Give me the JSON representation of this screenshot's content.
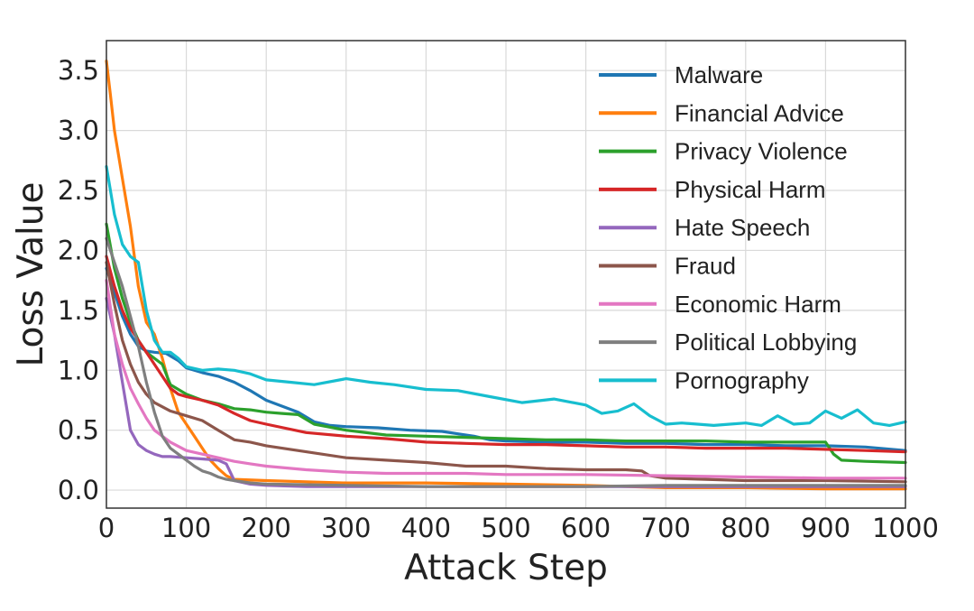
{
  "chart_data": {
    "type": "line",
    "title": "",
    "xlabel": "Attack Step",
    "ylabel": "Loss Value",
    "xlim": [
      0,
      1000
    ],
    "ylim": [
      -0.15,
      3.75
    ],
    "xticks": [
      0,
      100,
      200,
      300,
      400,
      500,
      600,
      700,
      800,
      900,
      1000
    ],
    "yticks": [
      0.0,
      0.5,
      1.0,
      1.5,
      2.0,
      2.5,
      3.0,
      3.5
    ],
    "xtick_labels": [
      "0",
      "100",
      "200",
      "300",
      "400",
      "500",
      "600",
      "700",
      "800",
      "900",
      "1000"
    ],
    "ytick_labels": [
      "0.0",
      "0.5",
      "1.0",
      "1.5",
      "2.0",
      "2.5",
      "3.0",
      "3.5"
    ],
    "grid": true,
    "legend_position": "top-right",
    "series": [
      {
        "name": "Malware",
        "color": "#1f77b4",
        "x": [
          0,
          10,
          20,
          30,
          40,
          50,
          60,
          75,
          90,
          100,
          120,
          140,
          160,
          180,
          200,
          240,
          260,
          280,
          300,
          340,
          380,
          420,
          440,
          460,
          480,
          500,
          550,
          600,
          650,
          700,
          750,
          800,
          850,
          900,
          950,
          1000
        ],
        "y": [
          1.85,
          1.65,
          1.45,
          1.3,
          1.2,
          1.16,
          1.15,
          1.14,
          1.08,
          1.02,
          0.98,
          0.95,
          0.9,
          0.83,
          0.75,
          0.65,
          0.57,
          0.54,
          0.53,
          0.52,
          0.5,
          0.49,
          0.47,
          0.45,
          0.42,
          0.41,
          0.4,
          0.4,
          0.39,
          0.39,
          0.38,
          0.38,
          0.37,
          0.37,
          0.36,
          0.33
        ]
      },
      {
        "name": "Financial Advice",
        "color": "#ff7f0e",
        "x": [
          0,
          5,
          10,
          20,
          30,
          40,
          50,
          60,
          70,
          80,
          90,
          100,
          110,
          120,
          130,
          140,
          150,
          160,
          200,
          250,
          300,
          400,
          500,
          600,
          700,
          800,
          900,
          1000
        ],
        "y": [
          3.58,
          3.3,
          3.0,
          2.6,
          2.2,
          1.7,
          1.4,
          1.3,
          1.1,
          0.85,
          0.65,
          0.55,
          0.45,
          0.35,
          0.25,
          0.18,
          0.12,
          0.09,
          0.08,
          0.07,
          0.06,
          0.06,
          0.05,
          0.04,
          0.02,
          0.02,
          0.01,
          0.01
        ]
      },
      {
        "name": "Privacy Violence",
        "color": "#2ca02c",
        "x": [
          0,
          10,
          20,
          30,
          40,
          50,
          60,
          70,
          80,
          100,
          120,
          140,
          160,
          180,
          200,
          220,
          240,
          260,
          300,
          350,
          400,
          450,
          500,
          550,
          600,
          650,
          700,
          750,
          800,
          850,
          900,
          910,
          920,
          950,
          1000
        ],
        "y": [
          2.22,
          1.85,
          1.6,
          1.4,
          1.25,
          1.15,
          1.1,
          1.05,
          0.88,
          0.8,
          0.75,
          0.72,
          0.68,
          0.67,
          0.65,
          0.64,
          0.63,
          0.55,
          0.5,
          0.46,
          0.45,
          0.44,
          0.43,
          0.42,
          0.42,
          0.41,
          0.41,
          0.41,
          0.4,
          0.4,
          0.4,
          0.3,
          0.25,
          0.24,
          0.23
        ]
      },
      {
        "name": "Physical Harm",
        "color": "#d62728",
        "x": [
          0,
          10,
          20,
          30,
          40,
          50,
          60,
          70,
          80,
          90,
          100,
          120,
          140,
          160,
          180,
          200,
          250,
          300,
          350,
          400,
          450,
          500,
          550,
          600,
          650,
          700,
          750,
          800,
          850,
          900,
          950,
          1000
        ],
        "y": [
          1.95,
          1.7,
          1.5,
          1.35,
          1.25,
          1.15,
          1.05,
          0.95,
          0.85,
          0.8,
          0.78,
          0.75,
          0.71,
          0.64,
          0.58,
          0.55,
          0.48,
          0.45,
          0.43,
          0.4,
          0.39,
          0.38,
          0.38,
          0.37,
          0.36,
          0.36,
          0.35,
          0.35,
          0.35,
          0.34,
          0.33,
          0.32
        ]
      },
      {
        "name": "Hate Speech",
        "color": "#9467bd",
        "x": [
          0,
          10,
          20,
          30,
          40,
          50,
          60,
          70,
          80,
          100,
          120,
          140,
          150,
          160,
          180,
          200,
          250,
          300,
          400,
          500,
          600,
          700,
          800,
          900,
          1000
        ],
        "y": [
          1.6,
          1.3,
          0.9,
          0.5,
          0.38,
          0.33,
          0.3,
          0.28,
          0.28,
          0.27,
          0.26,
          0.25,
          0.22,
          0.08,
          0.05,
          0.04,
          0.03,
          0.03,
          0.03,
          0.03,
          0.03,
          0.03,
          0.03,
          0.03,
          0.03
        ]
      },
      {
        "name": "Fraud",
        "color": "#8c564b",
        "x": [
          0,
          10,
          20,
          30,
          40,
          50,
          60,
          80,
          100,
          120,
          140,
          160,
          180,
          200,
          250,
          300,
          350,
          400,
          450,
          500,
          550,
          600,
          650,
          670,
          680,
          700,
          800,
          900,
          1000
        ],
        "y": [
          1.9,
          1.55,
          1.25,
          1.05,
          0.9,
          0.8,
          0.73,
          0.66,
          0.62,
          0.58,
          0.5,
          0.42,
          0.4,
          0.37,
          0.32,
          0.27,
          0.25,
          0.23,
          0.2,
          0.2,
          0.18,
          0.17,
          0.17,
          0.16,
          0.12,
          0.1,
          0.08,
          0.08,
          0.07
        ]
      },
      {
        "name": "Economic Harm",
        "color": "#e377c2",
        "x": [
          0,
          10,
          20,
          30,
          40,
          50,
          60,
          80,
          100,
          120,
          140,
          160,
          180,
          200,
          250,
          300,
          350,
          400,
          450,
          500,
          600,
          700,
          800,
          900,
          1000
        ],
        "y": [
          1.75,
          1.3,
          1.05,
          0.85,
          0.72,
          0.6,
          0.5,
          0.4,
          0.33,
          0.3,
          0.27,
          0.24,
          0.22,
          0.2,
          0.17,
          0.15,
          0.14,
          0.14,
          0.14,
          0.13,
          0.13,
          0.12,
          0.11,
          0.1,
          0.1
        ]
      },
      {
        "name": "Political Lobbying",
        "color": "#7f7f7f",
        "x": [
          0,
          10,
          20,
          30,
          40,
          50,
          60,
          70,
          80,
          90,
          100,
          110,
          120,
          130,
          140,
          150,
          160,
          180,
          200,
          300,
          400,
          500,
          600,
          700,
          800,
          900,
          1000
        ],
        "y": [
          2.1,
          1.9,
          1.7,
          1.45,
          1.2,
          0.9,
          0.65,
          0.45,
          0.35,
          0.3,
          0.25,
          0.2,
          0.16,
          0.14,
          0.11,
          0.09,
          0.08,
          0.06,
          0.05,
          0.04,
          0.03,
          0.03,
          0.03,
          0.04,
          0.04,
          0.04,
          0.04
        ]
      },
      {
        "name": "Pornography",
        "color": "#17becf",
        "x": [
          0,
          10,
          20,
          30,
          40,
          50,
          60,
          70,
          80,
          90,
          100,
          120,
          140,
          160,
          180,
          200,
          230,
          260,
          300,
          330,
          360,
          400,
          440,
          480,
          520,
          560,
          600,
          620,
          640,
          660,
          680,
          700,
          720,
          740,
          760,
          780,
          800,
          820,
          840,
          860,
          880,
          900,
          920,
          940,
          960,
          980,
          1000
        ],
        "y": [
          2.7,
          2.3,
          2.05,
          1.95,
          1.9,
          1.5,
          1.25,
          1.15,
          1.15,
          1.1,
          1.03,
          1.0,
          1.01,
          1.0,
          0.97,
          0.92,
          0.9,
          0.88,
          0.93,
          0.9,
          0.88,
          0.84,
          0.83,
          0.78,
          0.73,
          0.76,
          0.71,
          0.64,
          0.66,
          0.72,
          0.62,
          0.55,
          0.56,
          0.55,
          0.54,
          0.55,
          0.56,
          0.54,
          0.62,
          0.55,
          0.56,
          0.66,
          0.6,
          0.67,
          0.56,
          0.54,
          0.57
        ]
      }
    ]
  }
}
